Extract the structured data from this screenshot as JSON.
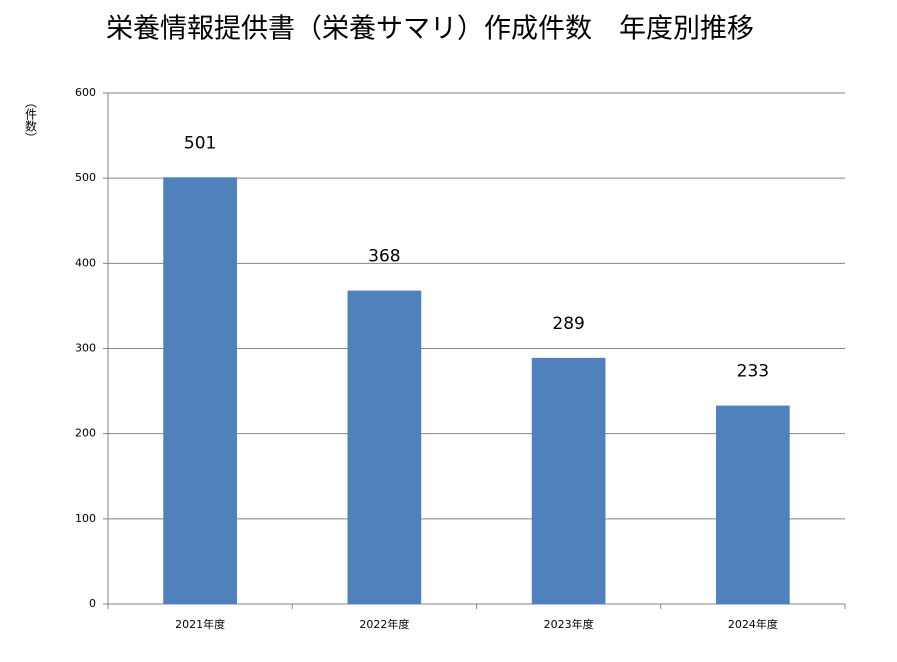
{
  "chart_data": {
    "type": "bar",
    "title": "栄養情報提供書（栄養サマリ）作成件数　年度別推移",
    "y_label": "（件数）",
    "categories": [
      "2021年度",
      "2022年度",
      "2023年度",
      "2024年度"
    ],
    "values": [
      501,
      368,
      289,
      233
    ],
    "color": "#4f81bd",
    "ylim": [
      0,
      600
    ],
    "yticks": [
      0,
      100,
      200,
      300,
      400,
      500,
      600
    ],
    "grid": true
  }
}
